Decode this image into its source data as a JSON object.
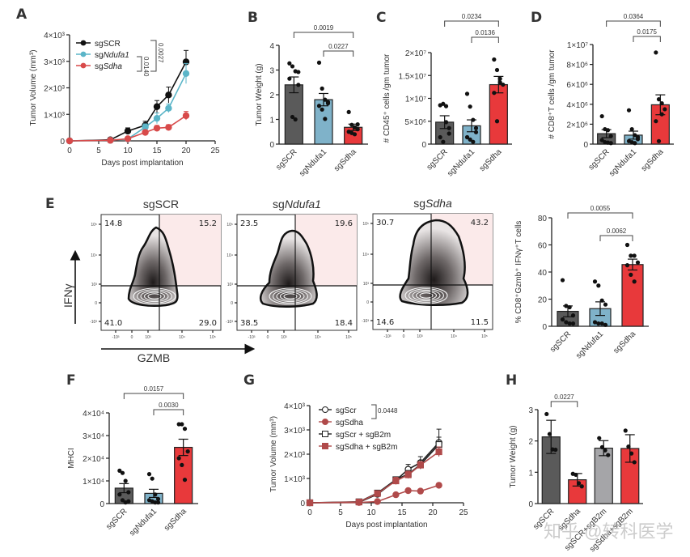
{
  "figure": {
    "watermark": "知乎 @转科医学",
    "colors": {
      "sgSCR": "#5a5a5a",
      "sgNdufa1": "#7fb2c9",
      "sgSdha": "#e8393b",
      "sgScrB2m": "#a5a5a8",
      "sgSdhaB2m": "#e8393b",
      "lineSCR": "#111111",
      "lineNdufa1": "#5bb5c8",
      "lineSdha": "#d84a4a",
      "lineSdhaG": "#b04a4a",
      "quadrant_fill": "#fbeaea"
    }
  },
  "chart_data": [
    {
      "panel": "A",
      "type": "line",
      "title": "",
      "xlabel": "Days post implantation",
      "ylabel": "Tumor Volume (mm³)",
      "xlim": [
        0,
        25
      ],
      "ylim": [
        0,
        4000
      ],
      "xticks": [
        "0",
        "5",
        "10",
        "15",
        "20",
        "25"
      ],
      "yticks": [
        "0",
        "1×10³",
        "2×10³",
        "3×10³",
        "4×10³"
      ],
      "x": [
        0,
        7,
        10,
        13,
        15,
        17,
        20
      ],
      "series": [
        {
          "name": "sgSCR",
          "values": [
            0,
            40,
            370,
            590,
            1290,
            1730,
            2980
          ],
          "errors": [
            0,
            20,
            120,
            150,
            230,
            300,
            430
          ]
        },
        {
          "name": "sgNdufa1",
          "values": [
            0,
            20,
            70,
            520,
            850,
            1230,
            2540
          ],
          "errors": [
            0,
            15,
            40,
            120,
            200,
            160,
            380
          ]
        },
        {
          "name": "sgSdha",
          "values": [
            0,
            20,
            80,
            320,
            480,
            510,
            950
          ],
          "errors": [
            0,
            10,
            30,
            90,
            100,
            100,
            160
          ]
        }
      ],
      "legend": [
        "sgSCR",
        "sgNdufa1",
        "sgSdha"
      ],
      "legend_prefix": "sg",
      "legend_italic": [
        "SCR",
        "Ndufa1",
        "Sdha"
      ],
      "annotations": [
        "0.0027",
        "0.0140"
      ]
    },
    {
      "panel": "B",
      "type": "bar",
      "ylabel": "Tumor Weight (g)",
      "categories": [
        "sgSCR",
        "sgNdufa1",
        "sgSdha"
      ],
      "values": [
        2.4,
        1.8,
        0.68
      ],
      "errors": [
        0.32,
        0.25,
        0.13
      ],
      "points": [
        [
          3.27,
          3.15,
          2.95,
          2.92,
          2.65,
          1.1,
          1.0,
          2.4
        ],
        [
          3.3,
          2.25,
          1.8,
          1.7,
          1.55,
          1.4,
          1.02,
          1.65
        ],
        [
          1.3,
          0.78,
          0.68,
          0.6,
          0.5,
          0.45,
          0.4,
          0.8
        ]
      ],
      "ylim": [
        0,
        4
      ],
      "yticks": [
        "0",
        "1",
        "2",
        "3",
        "4"
      ],
      "annotations": [
        {
          "from": 0,
          "to": 2,
          "p": "0.0019"
        },
        {
          "from": 1,
          "to": 2,
          "p": "0.0227"
        }
      ]
    },
    {
      "panel": "C",
      "type": "bar",
      "ylabel": "# CD45⁺ cells /gm tumor",
      "categories": [
        "sgSCR",
        "sgNdufa1",
        "sgSdha"
      ],
      "values": [
        4800000,
        4000000,
        13000000
      ],
      "errors": [
        1400000,
        1300000,
        1800000
      ],
      "points": [
        [
          8500000,
          8800000,
          8300000,
          2300000,
          1500000,
          500000,
          4800000,
          3500000
        ],
        [
          11000000,
          8200000,
          5300000,
          2600000,
          1500000,
          1000000,
          500000,
          3500000
        ],
        [
          18500000,
          16200000,
          14300000,
          13000000,
          11200000,
          5000000,
          13500000
        ]
      ],
      "ylim": [
        0,
        20000000
      ],
      "yticks": [
        "0",
        "5×10⁶",
        "1×10⁷",
        "1.5×10⁷",
        "2×10⁷"
      ],
      "annotations": [
        {
          "from": 0,
          "to": 2,
          "p": "0.0234"
        },
        {
          "from": 1,
          "to": 2,
          "p": "0.0136"
        }
      ]
    },
    {
      "panel": "D",
      "type": "bar",
      "ylabel": "# CD8⁺T cells /gm tumor",
      "categories": [
        "sgSCR",
        "sgNdufa1",
        "sgSdha"
      ],
      "values": [
        1050000,
        900000,
        3950000
      ],
      "errors": [
        400000,
        400000,
        1000000
      ],
      "points": [
        [
          2800000,
          1500000,
          1400000,
          800000,
          400000,
          200000,
          150000,
          100000
        ],
        [
          3400000,
          1500000,
          900000,
          500000,
          300000,
          200000,
          100000,
          700000
        ],
        [
          9200000,
          4500000,
          4100000,
          3500000,
          2300000,
          300000,
          3000000
        ]
      ],
      "ylim": [
        0,
        10000000
      ],
      "yticks": [
        "0",
        "2×10⁶",
        "4×10⁶",
        "6×10⁶",
        "8×10⁶",
        "1×10⁷"
      ],
      "annotations": [
        {
          "from": 0,
          "to": 2,
          "p": "0.0364"
        },
        {
          "from": 1,
          "to": 2,
          "p": "0.0175"
        }
      ]
    },
    {
      "panel": "E-bar",
      "type": "bar",
      "ylabel": "% CD8⁺Gzmb⁺ IFNγ⁺T cells",
      "categories": [
        "sgSCR",
        "sgNdufa1",
        "sgSdha"
      ],
      "values": [
        11,
        13,
        45.5
      ],
      "errors": [
        4,
        5,
        4
      ],
      "points": [
        [
          34,
          15,
          14,
          8,
          5,
          3,
          2,
          2
        ],
        [
          33,
          30,
          19,
          16,
          3,
          2,
          2,
          1
        ],
        [
          60,
          52,
          52,
          47,
          45,
          38,
          33
        ]
      ],
      "ylim": [
        0,
        80
      ],
      "yticks": [
        "0",
        "20",
        "40",
        "60",
        "80"
      ],
      "annotations": [
        {
          "from": 0,
          "to": 2,
          "p": "0.0055"
        },
        {
          "from": 1,
          "to": 2,
          "p": "0.0062"
        }
      ]
    },
    {
      "panel": "E-flow",
      "type": "heatmap",
      "xlabel": "GZMB",
      "ylabel": "IFNγ",
      "plots": [
        {
          "title_prefix": "sg",
          "title_italic": "SCR",
          "italic": false,
          "q_ul": "14.8",
          "q_ur": "15.2",
          "q_ll": "41.0",
          "q_lr": "29.0"
        },
        {
          "title_prefix": "sg",
          "title_italic": "Ndufa1",
          "italic": true,
          "q_ul": "23.5",
          "q_ur": "19.6",
          "q_ll": "38.5",
          "q_lr": "18.4"
        },
        {
          "title_prefix": "sg",
          "title_italic": "Sdha",
          "italic": true,
          "q_ul": "30.7",
          "q_ur": "43.2",
          "q_ll": "14.6",
          "q_lr": "11.5"
        }
      ],
      "xticks": [
        "-10³",
        "0",
        "10³",
        "10⁴",
        "10⁵"
      ],
      "yticks": [
        "10⁵",
        "10⁴",
        "10³",
        "0",
        "-10³"
      ]
    },
    {
      "panel": "F",
      "type": "bar",
      "ylabel": "MHCI",
      "categories": [
        "sgSCR",
        "sgNdufa1",
        "sgSdha"
      ],
      "values": [
        6800,
        4500,
        24800
      ],
      "errors": [
        2000,
        1800,
        3600
      ],
      "points": [
        [
          14500,
          13500,
          10000,
          5000,
          4000,
          1500,
          500,
          1000
        ],
        [
          13000,
          11000,
          4000,
          2000,
          1500,
          1000,
          500,
          500
        ],
        [
          35000,
          35000,
          33000,
          23000,
          20000,
          17000,
          10500
        ]
      ],
      "ylim": [
        0,
        40000
      ],
      "yticks": [
        "0",
        "1×10⁴",
        "2×10⁴",
        "3×10⁴",
        "4×10⁴"
      ],
      "annotations": [
        {
          "from": 0,
          "to": 2,
          "p": "0.0157"
        },
        {
          "from": 1,
          "to": 2,
          "p": "0.0030"
        }
      ]
    },
    {
      "panel": "G",
      "type": "line",
      "xlabel": "Days post implantation",
      "ylabel": "Tumor  Volume (mm³)",
      "xlim": [
        0,
        25
      ],
      "ylim": [
        0,
        4000
      ],
      "xticks": [
        "0",
        "5",
        "10",
        "15",
        "20",
        "25"
      ],
      "yticks": [
        "0",
        "1×10³",
        "2×10³",
        "3×10³",
        "4×10³"
      ],
      "x": [
        0,
        8,
        11,
        14,
        16,
        18,
        21
      ],
      "series": [
        {
          "name": "sgScr",
          "values": [
            0,
            20,
            350,
            920,
            1380,
            1650,
            2480
          ],
          "errors": [
            0,
            10,
            60,
            120,
            200,
            250,
            550
          ]
        },
        {
          "name": "sgSdha",
          "values": [
            0,
            10,
            50,
            330,
            500,
            480,
            720
          ],
          "errors": [
            0,
            5,
            20,
            40,
            50,
            50,
            60
          ]
        },
        {
          "name": "sgScr + sgB2m",
          "values": [
            0,
            40,
            400,
            950,
            1180,
            1570,
            2400
          ],
          "errors": [
            0,
            15,
            70,
            100,
            150,
            180,
            300
          ]
        },
        {
          "name": "sgSdha + sgB2m",
          "values": [
            0,
            30,
            380,
            900,
            1150,
            1550,
            2100
          ],
          "errors": [
            0,
            10,
            60,
            150,
            150,
            150,
            200
          ]
        }
      ],
      "legend": [
        "sgScr",
        "sgSdha",
        "sgScr + sgB2m",
        "sgSdha + sgB2m"
      ],
      "annotations": [
        "0.0448"
      ]
    },
    {
      "panel": "H",
      "type": "bar",
      "ylabel": "Tumor Weight (g)",
      "categories": [
        "sgSCR",
        "sgSdha",
        "sgSCR+sgB2m",
        "sgSdha+sgB2m"
      ],
      "values": [
        2.13,
        0.76,
        1.77,
        1.76
      ],
      "errors": [
        0.53,
        0.2,
        0.24,
        0.44
      ],
      "points": [
        [
          2.86,
          2.22,
          1.73,
          1.72
        ],
        [
          0.95,
          0.92,
          0.65,
          0.55
        ],
        [
          2.09,
          1.8,
          1.7,
          1.55
        ],
        [
          2.33,
          1.82,
          1.6,
          1.32
        ]
      ],
      "ylim": [
        0,
        3
      ],
      "yticks": [
        "0",
        "1",
        "2",
        "3"
      ],
      "annotations": [
        {
          "from": 0,
          "to": 1,
          "p": "0.0227"
        }
      ]
    }
  ],
  "panel_labels": [
    "A",
    "B",
    "C",
    "D",
    "E",
    "F",
    "G",
    "H"
  ]
}
